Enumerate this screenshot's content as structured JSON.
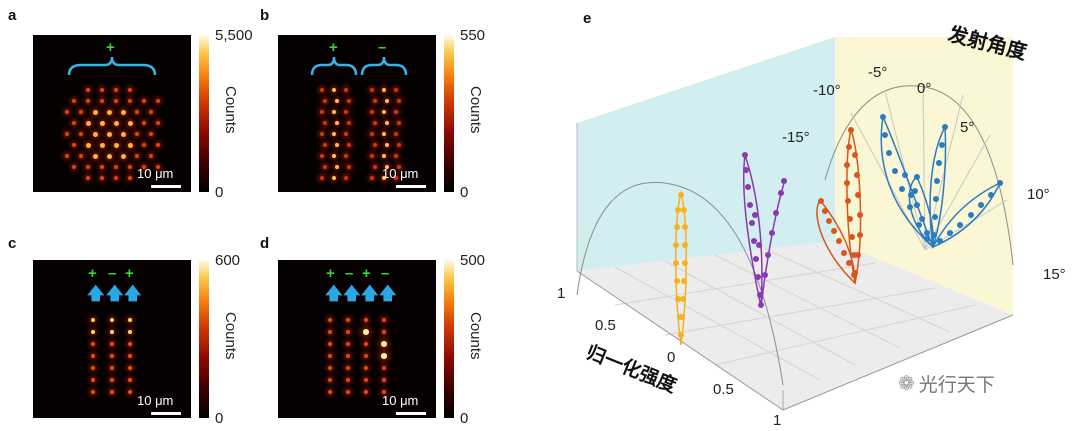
{
  "panels": {
    "a": {
      "letter": "a",
      "colorbar": {
        "max": "5,500",
        "min": "0",
        "label": "Counts"
      },
      "scale": "10 μm",
      "signs": [
        "+"
      ]
    },
    "b": {
      "letter": "b",
      "colorbar": {
        "max": "550",
        "min": "0",
        "label": "Counts"
      },
      "scale": "10 μm",
      "signs": [
        "+",
        "–"
      ]
    },
    "c": {
      "letter": "c",
      "colorbar": {
        "max": "600",
        "min": "0",
        "label": "Counts"
      },
      "scale": "10 μm",
      "signs": [
        "+",
        "–",
        "+"
      ]
    },
    "d": {
      "letter": "d",
      "colorbar": {
        "max": "500",
        "min": "0",
        "label": "Counts"
      },
      "scale": "10 μm",
      "signs": [
        "+",
        "–",
        "+",
        "–"
      ]
    }
  },
  "panel_e": {
    "letter": "e",
    "title": "发射角度",
    "intensity_label": "归一化强度",
    "angle_ticks": [
      "-15°",
      "-10°",
      "-5°",
      "0°",
      "5°",
      "10°",
      "15°"
    ],
    "intensity_ticks": [
      "1",
      "0.5",
      "0",
      "0.5",
      "1"
    ],
    "series_colors": {
      "orange": "#F5B122",
      "purple": "#8A3AAE",
      "red": "#D8551C",
      "blue": "#2A7BC1"
    }
  },
  "watermark": "光行天下"
}
